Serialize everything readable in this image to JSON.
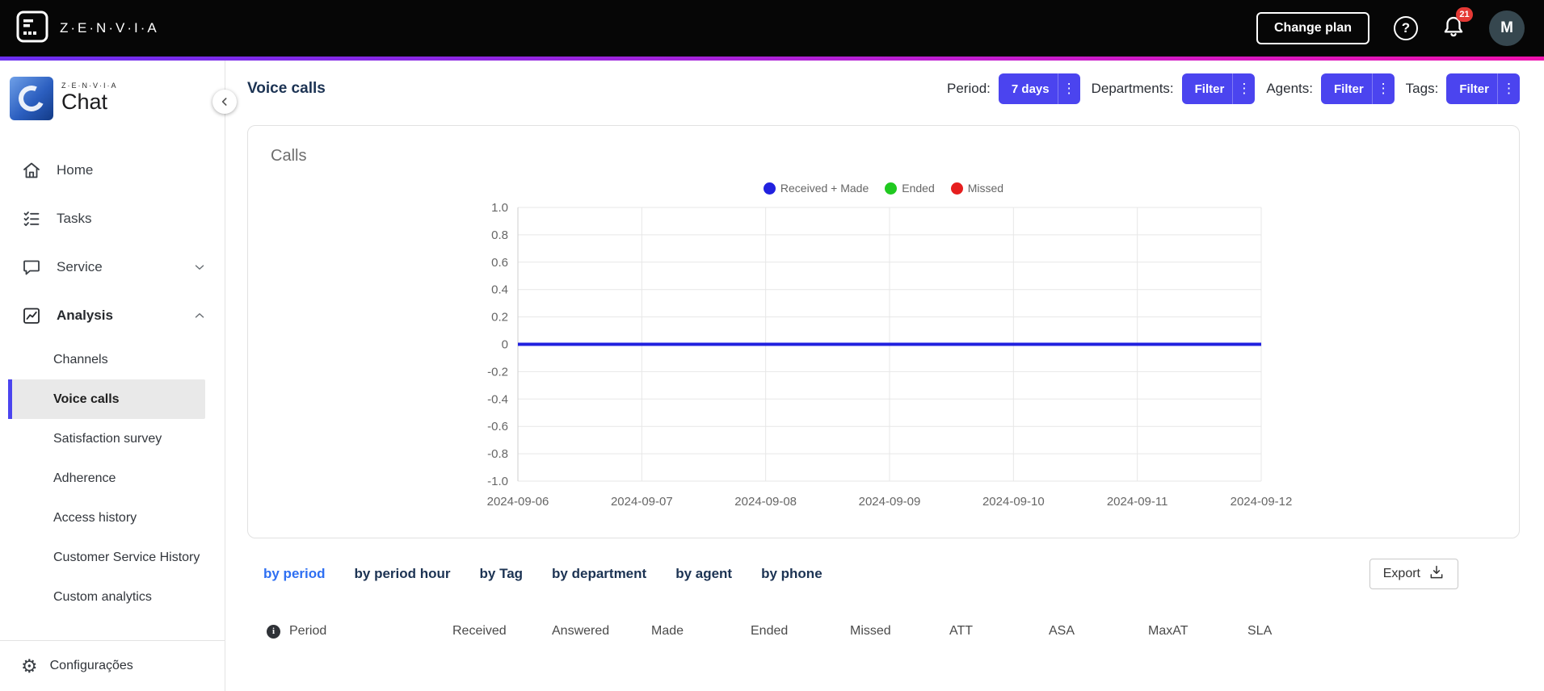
{
  "accent": "#4B44EF",
  "topbar": {
    "brand": "Z·E·N·V·I·A",
    "change_plan_label": "Change plan",
    "notification_count": "21",
    "avatar_initial": "M"
  },
  "sidebar": {
    "logo_small_text": "Z·E·N·V·I·A",
    "logo_text": "Chat",
    "items": [
      {
        "label": "Home"
      },
      {
        "label": "Tasks"
      },
      {
        "label": "Service"
      },
      {
        "label": "Analysis"
      }
    ],
    "analysis_children": [
      {
        "label": "Channels"
      },
      {
        "label": "Voice calls"
      },
      {
        "label": "Satisfaction survey"
      },
      {
        "label": "Adherence"
      },
      {
        "label": "Access history"
      },
      {
        "label": "Customer Service History"
      },
      {
        "label": "Custom analytics"
      }
    ],
    "footer_label": "Configurações"
  },
  "header": {
    "title": "Voice calls",
    "filters": [
      {
        "label": "Period:",
        "button": "7 days"
      },
      {
        "label": "Departments:",
        "button": "Filter"
      },
      {
        "label": "Agents:",
        "button": "Filter"
      },
      {
        "label": "Tags:",
        "button": "Filter"
      }
    ]
  },
  "chart_card": {
    "title": "Calls"
  },
  "chart_data": {
    "type": "line",
    "title": "Calls",
    "x": [
      "2024-09-06",
      "2024-09-07",
      "2024-09-08",
      "2024-09-09",
      "2024-09-10",
      "2024-09-11",
      "2024-09-12"
    ],
    "series": [
      {
        "name": "Received + Made",
        "color": "#2121DF",
        "values": [
          0,
          0,
          0,
          0,
          0,
          0,
          0
        ]
      },
      {
        "name": "Ended",
        "color": "#20C920",
        "values": [
          0,
          0,
          0,
          0,
          0,
          0,
          0
        ]
      },
      {
        "name": "Missed",
        "color": "#E61E1E",
        "values": [
          0,
          0,
          0,
          0,
          0,
          0,
          0
        ]
      }
    ],
    "ylim": [
      -1.0,
      1.0
    ],
    "yticks": [
      1.0,
      0.8,
      0.6,
      0.4,
      0.2,
      0,
      -0.2,
      -0.4,
      -0.6,
      -0.8,
      -1.0
    ],
    "grid": true,
    "legend_position": "top"
  },
  "table_section": {
    "tabs": [
      "by period",
      "by period hour",
      "by Tag",
      "by department",
      "by agent",
      "by phone"
    ],
    "active_tab": "by period",
    "export_label": "Export",
    "columns": [
      "Period",
      "Received",
      "Answered",
      "Made",
      "Ended",
      "Missed",
      "ATT",
      "ASA",
      "MaxAT",
      "SLA"
    ]
  }
}
